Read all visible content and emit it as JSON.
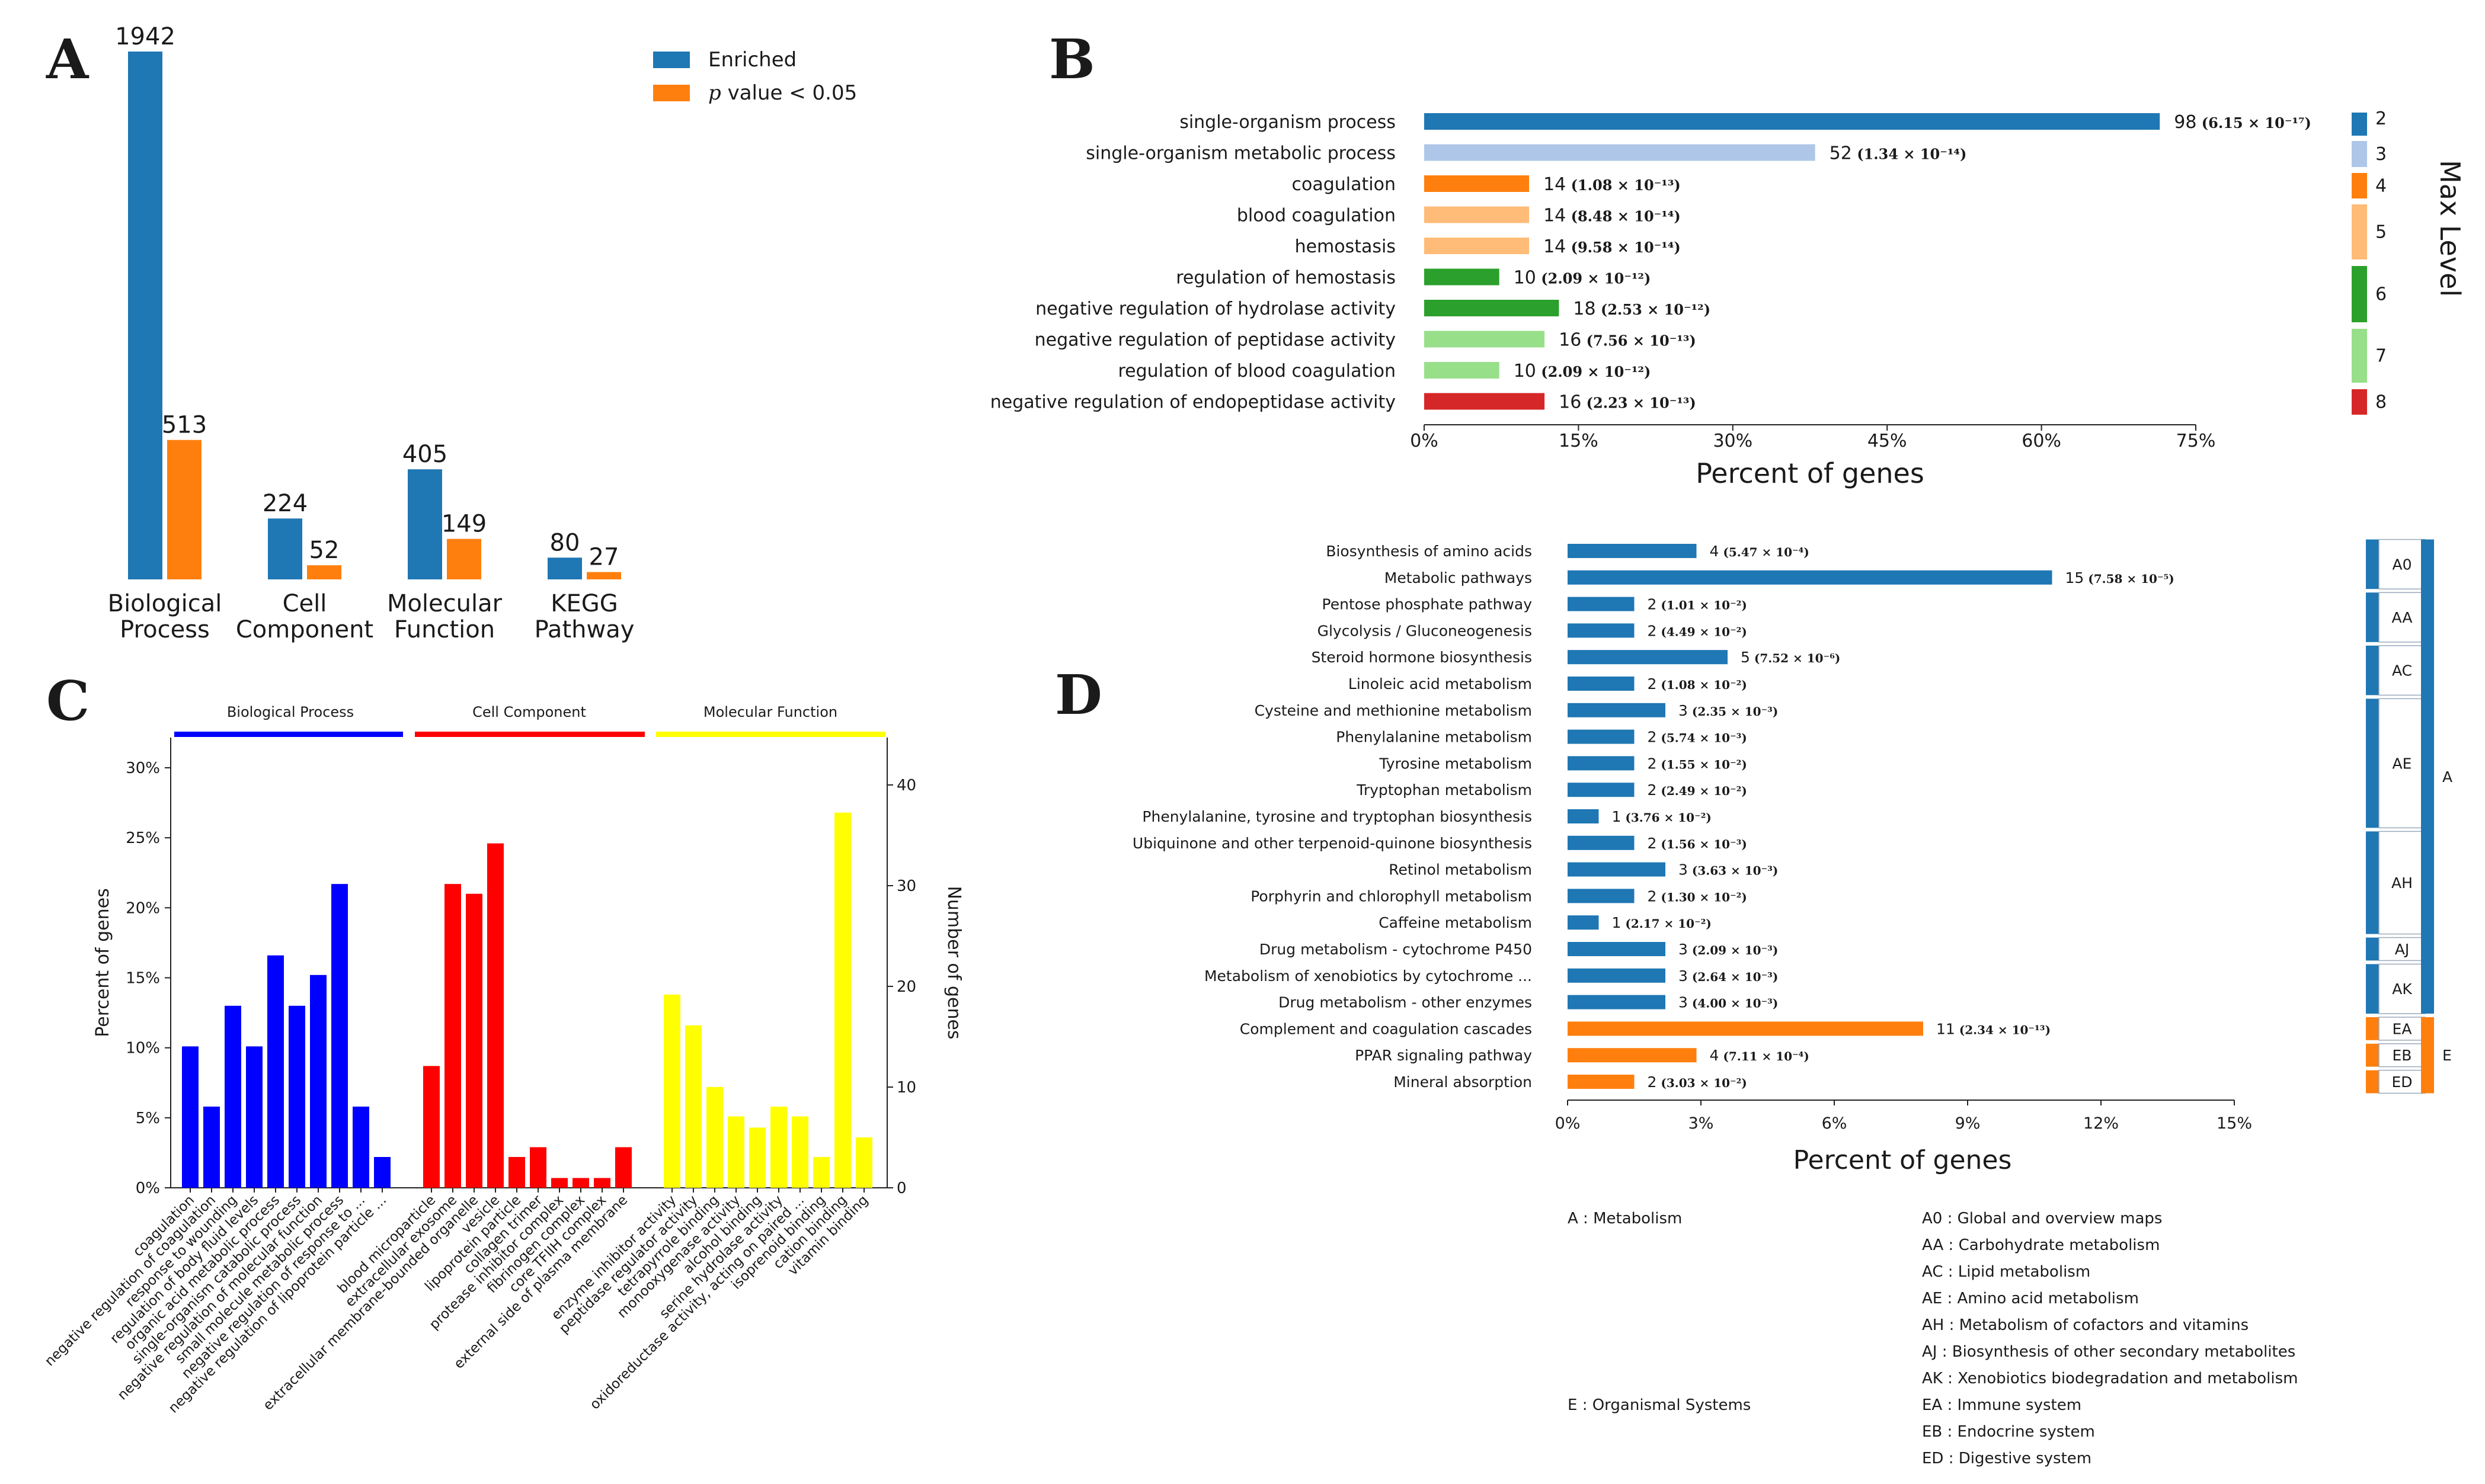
{
  "panels": {
    "a": "A",
    "b": "B",
    "c": "C",
    "d": "D"
  },
  "colors": {
    "blue": "#1f77b4",
    "orange": "#ff7f0e",
    "tab20": [
      "#1f77b4",
      "#aec7e8",
      "#ff7f0e",
      "#ffbb78",
      "#2ca02c",
      "#98df8a",
      "#d62728"
    ],
    "c_bp": "#0000ff",
    "c_cc": "#ff0000",
    "c_mf": "#ffff00"
  },
  "chart_data": [
    {
      "id": "A",
      "type": "bar",
      "title": "",
      "categories": [
        [
          "Biological",
          "Process"
        ],
        [
          "Cell",
          "Component"
        ],
        [
          "Molecular",
          "Function"
        ],
        [
          "KEGG",
          "Pathway"
        ]
      ],
      "series": [
        {
          "name": "Enriched",
          "values": [
            1942,
            224,
            405,
            80
          ]
        },
        {
          "name": "p value < 0.05",
          "values": [
            513,
            52,
            149,
            27
          ]
        }
      ],
      "legend": {
        "enriched": "Enriched",
        "p_italic": "p",
        "p_rest": " value < 0.05"
      },
      "ylim": [
        0,
        1942
      ]
    },
    {
      "id": "B",
      "type": "bar",
      "orientation": "horizontal",
      "xlabel": "Percent of genes",
      "xlim": [
        0,
        75
      ],
      "xticks": [
        "0%",
        "15%",
        "30%",
        "45%",
        "60%",
        "75%"
      ],
      "legend_title": "Max Level",
      "levels": [
        "2",
        "3",
        "4",
        "5",
        "6",
        "7",
        "8"
      ],
      "bars": [
        {
          "label": "single-organism process",
          "value": 71.5,
          "count": "98",
          "p": "6.15 × 10⁻¹⁷",
          "level": 0
        },
        {
          "label": "single-organism metabolic process",
          "value": 38.0,
          "count": "52",
          "p": "1.34 × 10⁻¹⁴",
          "level": 1
        },
        {
          "label": "coagulation",
          "value": 10.2,
          "count": "14",
          "p": "1.08 × 10⁻¹³",
          "level": 2
        },
        {
          "label": "blood coagulation",
          "value": 10.2,
          "count": "14",
          "p": "8.48 × 10⁻¹⁴",
          "level": 3
        },
        {
          "label": "hemostasis",
          "value": 10.2,
          "count": "14",
          "p": "9.58 × 10⁻¹⁴",
          "level": 3
        },
        {
          "label": "regulation of hemostasis",
          "value": 7.3,
          "count": "10",
          "p": "2.09 × 10⁻¹²",
          "level": 4
        },
        {
          "label": "negative regulation of hydrolase activity",
          "value": 13.1,
          "count": "18",
          "p": "2.53 × 10⁻¹²",
          "level": 4
        },
        {
          "label": "negative regulation of peptidase activity",
          "value": 11.7,
          "count": "16",
          "p": "7.56 × 10⁻¹³",
          "level": 5
        },
        {
          "label": "regulation of blood coagulation",
          "value": 7.3,
          "count": "10",
          "p": "2.09 × 10⁻¹²",
          "level": 5
        },
        {
          "label": "negative regulation of endopeptidase activity",
          "value": 11.7,
          "count": "16",
          "p": "2.23 × 10⁻¹³",
          "level": 6
        }
      ]
    },
    {
      "id": "C",
      "type": "bar",
      "ylabel": "Percent of genes",
      "ylabel_right": "Number of genes",
      "ylim": [
        0,
        32
      ],
      "yticks": [
        "0%",
        "5%",
        "10%",
        "15%",
        "20%",
        "25%",
        "30%"
      ],
      "yticks_right": [
        "0",
        "10",
        "20",
        "30",
        "40"
      ],
      "groups": [
        {
          "name": "Biological Process",
          "categories": [
            "coagulation",
            "negative regulation of coagulation",
            "response to wounding",
            "regulation of body fluid levels",
            "organic acid metabolic process",
            "single-organism catabolic process",
            "negative regulation of molecular function",
            "small molecule metabolic process",
            "negative regulation of response to ...",
            "negative regulation of lipoprotein particle ..."
          ],
          "values": [
            10.1,
            5.8,
            13.0,
            10.1,
            16.6,
            13.0,
            15.2,
            21.7,
            5.8,
            2.2
          ]
        },
        {
          "name": "Cell Component",
          "categories": [
            "blood microparticle",
            "extracellular exosome",
            "extracellular membrane-bounded organelle",
            "vesicle",
            "lipoprotein particle",
            "collagen trimer",
            "protease inhibitor complex",
            "fibrinogen complex",
            "core TFIIH complex",
            "external side of plasma membrane"
          ],
          "values": [
            8.7,
            21.7,
            21.0,
            24.6,
            2.2,
            2.9,
            0.7,
            0.7,
            0.7,
            2.9
          ]
        },
        {
          "name": "Molecular Function",
          "categories": [
            "enzyme inhibitor activity",
            "peptidase regulator activity",
            "tetrapyrrole binding",
            "monooxygenase activity",
            "alcohol binding",
            "serine hydrolase activity",
            "oxidoreductase activity, acting on paired ...",
            "isoprenoid binding",
            "cation binding",
            "vitamin binding"
          ],
          "values": [
            13.8,
            11.6,
            7.2,
            5.1,
            4.3,
            5.8,
            5.1,
            2.2,
            26.8,
            3.6
          ]
        }
      ]
    },
    {
      "id": "D",
      "type": "bar",
      "orientation": "horizontal",
      "xlabel": "Percent of genes",
      "xlim": [
        0,
        15
      ],
      "xticks": [
        "0%",
        "3%",
        "6%",
        "9%",
        "12%",
        "15%"
      ],
      "bars": [
        {
          "label": "Biosynthesis of amino acids",
          "value": 2.9,
          "count": "4",
          "p": "5.47 × 10⁻⁴",
          "group": "A"
        },
        {
          "label": "Metabolic pathways",
          "value": 10.9,
          "count": "15",
          "p": "7.58 × 10⁻⁵",
          "group": "A"
        },
        {
          "label": "Pentose phosphate pathway",
          "value": 1.5,
          "count": "2",
          "p": "1.01 × 10⁻²",
          "group": "A"
        },
        {
          "label": "Glycolysis / Gluconeogenesis",
          "value": 1.5,
          "count": "2",
          "p": "4.49 × 10⁻²",
          "group": "A"
        },
        {
          "label": "Steroid hormone biosynthesis",
          "value": 3.6,
          "count": "5",
          "p": "7.52 × 10⁻⁶",
          "group": "A"
        },
        {
          "label": "Linoleic acid metabolism",
          "value": 1.5,
          "count": "2",
          "p": "1.08 × 10⁻²",
          "group": "A"
        },
        {
          "label": "Cysteine and methionine metabolism",
          "value": 2.2,
          "count": "3",
          "p": "2.35 × 10⁻³",
          "group": "A"
        },
        {
          "label": "Phenylalanine metabolism",
          "value": 1.5,
          "count": "2",
          "p": "5.74 × 10⁻³",
          "group": "A"
        },
        {
          "label": "Tyrosine metabolism",
          "value": 1.5,
          "count": "2",
          "p": "1.55 × 10⁻²",
          "group": "A"
        },
        {
          "label": "Tryptophan metabolism",
          "value": 1.5,
          "count": "2",
          "p": "2.49 × 10⁻²",
          "group": "A"
        },
        {
          "label": "Phenylalanine, tyrosine and tryptophan biosynthesis",
          "value": 0.7,
          "count": "1",
          "p": "3.76 × 10⁻²",
          "group": "A"
        },
        {
          "label": "Ubiquinone and other terpenoid-quinone biosynthesis",
          "value": 1.5,
          "count": "2",
          "p": "1.56 × 10⁻³",
          "group": "A"
        },
        {
          "label": "Retinol metabolism",
          "value": 2.2,
          "count": "3",
          "p": "3.63 × 10⁻³",
          "group": "A"
        },
        {
          "label": "Porphyrin and chlorophyll metabolism",
          "value": 1.5,
          "count": "2",
          "p": "1.30 × 10⁻²",
          "group": "A"
        },
        {
          "label": "Caffeine metabolism",
          "value": 0.7,
          "count": "1",
          "p": "2.17 × 10⁻²",
          "group": "A"
        },
        {
          "label": "Drug metabolism - cytochrome P450",
          "value": 2.2,
          "count": "3",
          "p": "2.09 × 10⁻³",
          "group": "A"
        },
        {
          "label": "Metabolism of xenobiotics by cytochrome ...",
          "value": 2.2,
          "count": "3",
          "p": "2.64 × 10⁻³",
          "group": "A"
        },
        {
          "label": "Drug metabolism - other enzymes",
          "value": 2.2,
          "count": "3",
          "p": "4.00 × 10⁻³",
          "group": "A"
        },
        {
          "label": "Complement and coagulation cascades",
          "value": 8.0,
          "count": "11",
          "p": "2.34 × 10⁻¹³",
          "group": "E"
        },
        {
          "label": "PPAR signaling pathway",
          "value": 2.9,
          "count": "4",
          "p": "7.11 × 10⁻⁴",
          "group": "E"
        },
        {
          "label": "Mineral absorption",
          "value": 1.5,
          "count": "2",
          "p": "3.03 × 10⁻²",
          "group": "E"
        }
      ],
      "subgroups": [
        {
          "code": "A0",
          "from": 0,
          "to": 1
        },
        {
          "code": "AA",
          "from": 2,
          "to": 3
        },
        {
          "code": "AC",
          "from": 4,
          "to": 5
        },
        {
          "code": "AE",
          "from": 6,
          "to": 10
        },
        {
          "code": "AH",
          "from": 11,
          "to": 14
        },
        {
          "code": "AJ",
          "from": 15,
          "to": 15
        },
        {
          "code": "AK",
          "from": 16,
          "to": 17
        },
        {
          "code": "EA",
          "from": 18,
          "to": 18
        },
        {
          "code": "EB",
          "from": 19,
          "to": 19
        },
        {
          "code": "ED",
          "from": 20,
          "to": 20
        }
      ],
      "groups": [
        {
          "code": "A",
          "from": 0,
          "to": 17
        },
        {
          "code": "E",
          "from": 18,
          "to": 20
        }
      ]
    }
  ],
  "d_legend": {
    "left": [
      "A : Metabolism",
      "E : Organismal Systems"
    ],
    "right": [
      "A0 : Global and overview maps",
      "AA : Carbohydrate metabolism",
      "AC : Lipid metabolism",
      "AE : Amino acid metabolism",
      "AH : Metabolism of cofactors and vitamins",
      "AJ : Biosynthesis of other secondary metabolites",
      "AK : Xenobiotics biodegradation and metabolism",
      "EA : Immune system",
      "EB : Endocrine system",
      "ED : Digestive system"
    ]
  }
}
